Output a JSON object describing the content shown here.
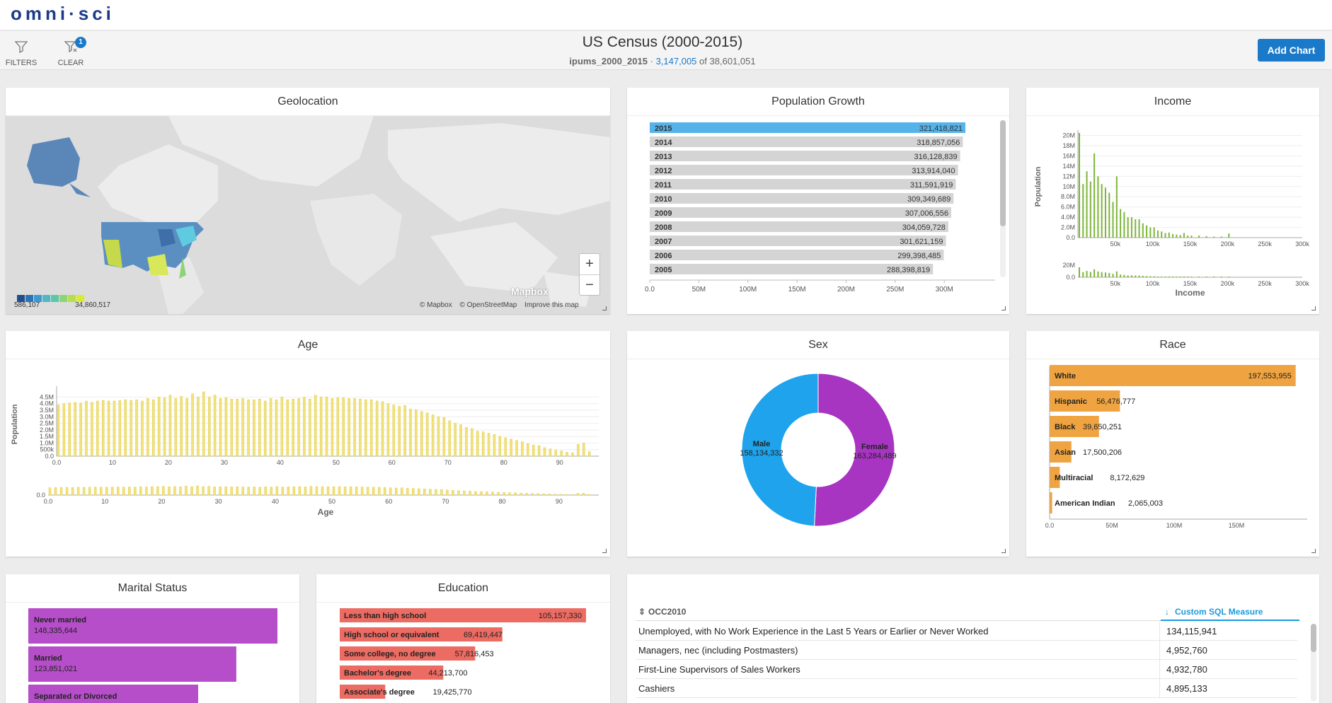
{
  "app": {
    "logo": "omni·sci"
  },
  "header": {
    "filters_label": "FILTERS",
    "clear_label": "CLEAR",
    "clear_badge": "1",
    "title": "US Census (2000-2015)",
    "table": "ipums_2000_2015",
    "separator": "·",
    "filtered": "3,147,005",
    "of_text": "of",
    "total": "38,601,051",
    "add_chart": "Add Chart"
  },
  "geolocation": {
    "title": "Geolocation",
    "legend_min": "586,107",
    "legend_max": "34,860,517",
    "legend_colors": [
      "#1f4e8c",
      "#2d73b5",
      "#3d9ad1",
      "#4fb8c4",
      "#5cc7a8",
      "#8ed37a",
      "#b6dd4c",
      "#d9ec2a"
    ],
    "zoom_in": "+",
    "zoom_out": "−",
    "watermark": "Mapbox",
    "attrib_mapbox": "© Mapbox",
    "attrib_osm": "© OpenStreetMap",
    "attrib_improve": "Improve this map"
  },
  "population_growth": {
    "title": "Population Growth",
    "x_ticks": [
      "0.0",
      "50M",
      "100M",
      "150M",
      "200M",
      "250M",
      "300M"
    ],
    "chart_data": {
      "type": "bar",
      "orientation": "horizontal",
      "categories": [
        "2015",
        "2014",
        "2013",
        "2012",
        "2011",
        "2010",
        "2009",
        "2008",
        "2007",
        "2006",
        "2005"
      ],
      "values": [
        321418821,
        318857056,
        316128839,
        313914040,
        311591919,
        309349689,
        307006556,
        304059728,
        301621159,
        299398485,
        288398819
      ],
      "labels": [
        "321,418,821",
        "318,857,056",
        "316,128,839",
        "313,914,040",
        "311,591,919",
        "309,349,689",
        "307,006,556",
        "304,059,728",
        "301,621,159",
        "299,398,485",
        "288,398,819"
      ],
      "selected": "2015",
      "xlim": [
        0,
        320000000
      ]
    }
  },
  "income": {
    "title": "Income",
    "ylabel": "Population",
    "xlabel": "Income",
    "y_ticks": [
      "0.0",
      "2.0M",
      "4.0M",
      "6.0M",
      "8.0M",
      "10M",
      "12M",
      "14M",
      "16M",
      "18M",
      "20M"
    ],
    "x_ticks": [
      "50k",
      "100k",
      "150k",
      "200k",
      "250k",
      "300k"
    ],
    "range_y_ticks": [
      "20M",
      "0.0"
    ],
    "chart_data": {
      "type": "bar",
      "xlim": [
        0,
        300000
      ],
      "ylim": [
        0,
        20500000
      ],
      "x": [
        0,
        5000,
        10000,
        15000,
        20000,
        25000,
        30000,
        35000,
        40000,
        45000,
        50000,
        55000,
        60000,
        65000,
        70000,
        75000,
        80000,
        85000,
        90000,
        95000,
        100000,
        105000,
        110000,
        115000,
        120000,
        125000,
        130000,
        135000,
        140000,
        145000,
        150000,
        160000,
        170000,
        180000,
        190000,
        200000
      ],
      "values": [
        20500000,
        10500000,
        13000000,
        11000000,
        16500000,
        12000000,
        10500000,
        9800000,
        8800000,
        7000000,
        12000000,
        5600000,
        5000000,
        4000000,
        4000000,
        3600000,
        3600000,
        2800000,
        2400000,
        2000000,
        2000000,
        1400000,
        1200000,
        900000,
        1000000,
        700000,
        600000,
        500000,
        900000,
        400000,
        400000,
        400000,
        300000,
        200000,
        200000,
        800000
      ]
    }
  },
  "age": {
    "title": "Age",
    "ylabel": "Population",
    "xlabel": "Age",
    "y_ticks": [
      "0.0",
      "500k",
      "1.0M",
      "1.5M",
      "2.0M",
      "2.5M",
      "3.0M",
      "3.5M",
      "4.0M",
      "4.5M"
    ],
    "x_ticks": [
      "0.0",
      "10",
      "20",
      "30",
      "40",
      "50",
      "60",
      "70",
      "80",
      "90"
    ],
    "range_y_tick": "0.0",
    "chart_data": {
      "type": "bar",
      "xlim": [
        0,
        97
      ],
      "ylim": [
        0,
        4900000
      ],
      "x": [
        0,
        1,
        2,
        3,
        4,
        5,
        6,
        7,
        8,
        9,
        10,
        11,
        12,
        13,
        14,
        15,
        16,
        17,
        18,
        19,
        20,
        21,
        22,
        23,
        24,
        25,
        26,
        27,
        28,
        29,
        30,
        31,
        32,
        33,
        34,
        35,
        36,
        37,
        38,
        39,
        40,
        41,
        42,
        43,
        44,
        45,
        46,
        47,
        48,
        49,
        50,
        51,
        52,
        53,
        54,
        55,
        56,
        57,
        58,
        59,
        60,
        61,
        62,
        63,
        64,
        65,
        66,
        67,
        68,
        69,
        70,
        71,
        72,
        73,
        74,
        75,
        76,
        77,
        78,
        79,
        80,
        81,
        82,
        83,
        84,
        85,
        86,
        87,
        88,
        89,
        90,
        91,
        92,
        93,
        94,
        95
      ],
      "values": [
        3900000,
        4000000,
        4050000,
        4100000,
        4050000,
        4200000,
        4100000,
        4200000,
        4250000,
        4200000,
        4200000,
        4250000,
        4300000,
        4250000,
        4300000,
        4200000,
        4400000,
        4300000,
        4500000,
        4450000,
        4650000,
        4400000,
        4550000,
        4400000,
        4750000,
        4500000,
        4900000,
        4500000,
        4650000,
        4400000,
        4450000,
        4350000,
        4350000,
        4400000,
        4300000,
        4300000,
        4350000,
        4200000,
        4400000,
        4300000,
        4500000,
        4300000,
        4350000,
        4400000,
        4500000,
        4350000,
        4650000,
        4500000,
        4500000,
        4400000,
        4450000,
        4450000,
        4400000,
        4400000,
        4350000,
        4300000,
        4300000,
        4200000,
        4150000,
        4000000,
        3900000,
        3800000,
        3850000,
        3600000,
        3550000,
        3400000,
        3300000,
        3150000,
        3000000,
        2950000,
        2700000,
        2500000,
        2400000,
        2200000,
        2100000,
        1900000,
        1850000,
        1750000,
        1650000,
        1500000,
        1400000,
        1300000,
        1200000,
        1100000,
        950000,
        850000,
        800000,
        650000,
        550000,
        450000,
        400000,
        300000,
        250000,
        900000,
        1000000,
        350000
      ]
    }
  },
  "sex": {
    "title": "Sex",
    "chart_data": {
      "type": "pie",
      "categories": [
        "Female",
        "Male"
      ],
      "values": [
        163284489,
        158134332
      ],
      "labels": [
        "163,284,489",
        "158,134,332"
      ],
      "colors": [
        "#a834c2",
        "#1ea3ec"
      ]
    }
  },
  "race": {
    "title": "Race",
    "x_ticks": [
      "0.0",
      "50M",
      "100M",
      "150M"
    ],
    "chart_data": {
      "type": "bar",
      "orientation": "horizontal",
      "categories": [
        "White",
        "Hispanic",
        "Black",
        "Asian",
        "Multiracial",
        "American Indian"
      ],
      "values": [
        197553955,
        56476777,
        39650251,
        17500206,
        8172629,
        2065003
      ],
      "labels": [
        "197,553,955",
        "56,476,777",
        "39,650,251",
        "17,500,206",
        "8,172,629",
        "2,065,003"
      ],
      "xlim": [
        0,
        200000000
      ]
    }
  },
  "marital": {
    "title": "Marital Status",
    "chart_data": {
      "type": "bar",
      "orientation": "horizontal",
      "categories": [
        "Never married",
        "Married",
        "Separated or Divorced"
      ],
      "values": [
        148335644,
        123851021,
        0
      ],
      "labels": [
        "148,335,644",
        "123,851,021",
        ""
      ]
    }
  },
  "education": {
    "title": "Education",
    "chart_data": {
      "type": "bar",
      "orientation": "horizontal",
      "categories": [
        "Less than high school",
        "High school or equivalent",
        "Some college, no degree",
        "Bachelor's degree",
        "Associate's degree"
      ],
      "values": [
        105157330,
        69419447,
        57816453,
        44213700,
        19425770
      ],
      "labels": [
        "105,157,330",
        "69,419,447",
        "57,816,453",
        "44,213,700",
        "19,425,770"
      ]
    }
  },
  "table": {
    "col1": "OCC2010",
    "col1_icon": "⇕",
    "col2": "Custom SQL Measure",
    "col2_icon": "↓",
    "rows": [
      {
        "name": "Unemployed, with No Work Experience in the Last 5 Years or Earlier or Never Worked",
        "value": "134,115,941"
      },
      {
        "name": "Managers, nec (including Postmasters)",
        "value": "4,952,760"
      },
      {
        "name": "First-Line Supervisors of Sales Workers",
        "value": "4,932,780"
      },
      {
        "name": "Cashiers",
        "value": "4,895,133"
      }
    ]
  }
}
